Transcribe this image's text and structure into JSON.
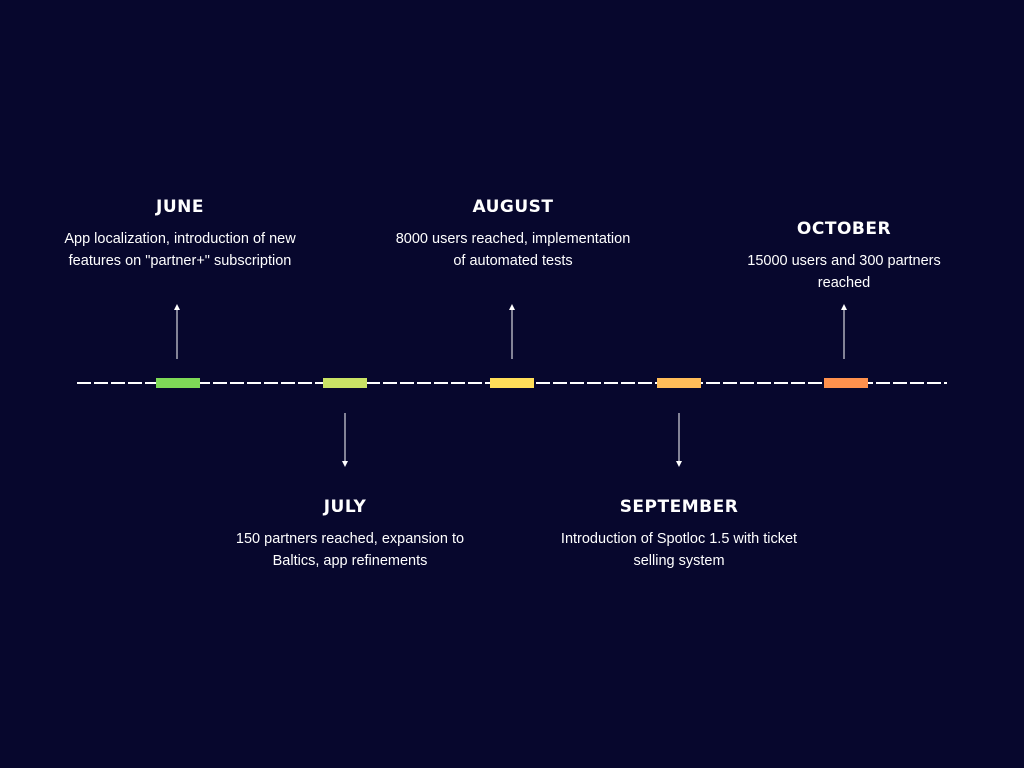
{
  "colors": {
    "background": "#07072d",
    "line": "#ffffff",
    "june_marker": "#7ed957",
    "july_marker": "#c9e265",
    "august_marker": "#ffde59",
    "september_marker": "#ffbd59",
    "october_marker": "#ff914d"
  },
  "milestones": [
    {
      "month": "JUNE",
      "description": "App localization, introduction of new features on \"partner+\" subscription",
      "arrow": "up"
    },
    {
      "month": "JULY",
      "description": "150 partners reached, expansion to Baltics, app refinements",
      "arrow": "down"
    },
    {
      "month": "AUGUST",
      "description": "8000 users reached, implementation of automated tests",
      "arrow": "up"
    },
    {
      "month": "SEPTEMBER",
      "description": "Introduction of Spotloc 1.5 with ticket selling system",
      "arrow": "down"
    },
    {
      "month": "OCTOBER",
      "description": "15000 users and 300 partners reached",
      "arrow": "up"
    }
  ]
}
